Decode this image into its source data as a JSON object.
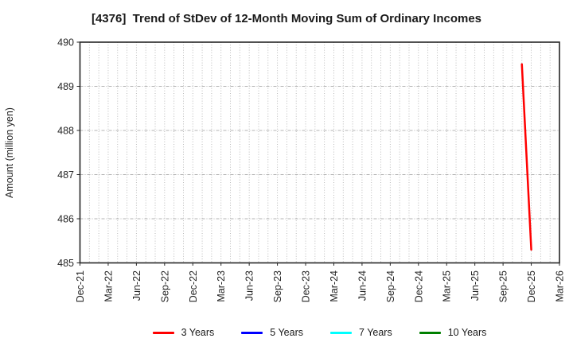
{
  "chart_data": {
    "type": "line",
    "title": "[4376]  Trend of StDev of 12-Month Moving Sum of Ordinary Incomes",
    "ylabel": "Amount (million yen)",
    "xlabel": "",
    "ylim": [
      485,
      490
    ],
    "y_ticks": [
      485,
      486,
      487,
      488,
      489,
      490
    ],
    "x_start": "Dec-21",
    "x_end": "Mar-26",
    "x_tick_labels": [
      "Dec-21",
      "Mar-22",
      "Jun-22",
      "Sep-22",
      "Dec-22",
      "Mar-23",
      "Jun-23",
      "Sep-23",
      "Dec-23",
      "Mar-24",
      "Jun-24",
      "Sep-24",
      "Dec-24",
      "Mar-25",
      "Jun-25",
      "Sep-25",
      "Dec-25",
      "Mar-26"
    ],
    "grid": {
      "vertical": "monthly-dotted",
      "horizontal": "integer-dashed",
      "color": "#b3b3b3"
    },
    "axis_color": "#262626",
    "legend_position": "bottom",
    "series": [
      {
        "name": "3 Years",
        "color": "#ff0000",
        "points": [
          {
            "x": "Nov-25",
            "y": 489.5
          },
          {
            "x": "Dec-25",
            "y": 485.3
          }
        ]
      },
      {
        "name": "5 Years",
        "color": "#0000ff",
        "points": []
      },
      {
        "name": "7 Years",
        "color": "#00ffff",
        "points": []
      },
      {
        "name": "10 Years",
        "color": "#008000",
        "points": []
      }
    ]
  }
}
